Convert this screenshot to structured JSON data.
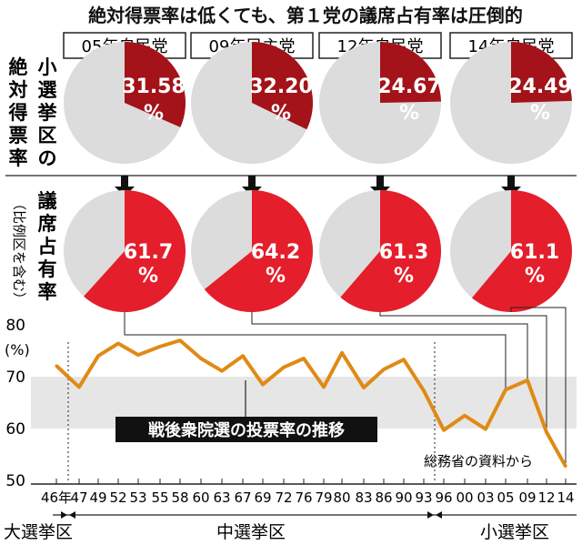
{
  "title": "絶対得票率は低くても、第１党の議席占有率は圧倒的",
  "pie_section": {
    "row1_label": [
      "小",
      "選",
      "挙",
      "区",
      "の",
      "絶",
      "対",
      "得",
      "票",
      "率"
    ],
    "row2_label_main": [
      "議",
      "席",
      "占",
      "有",
      "率"
    ],
    "row2_label_sub": "（比例区を含む）",
    "elections": [
      {
        "label": "05年自民党",
        "absolute_vote_rate": "31.58",
        "seat_share": "61.7"
      },
      {
        "label": "09年民主党",
        "absolute_vote_rate": "32.20",
        "seat_share": "64.2"
      },
      {
        "label": "12年自民党",
        "absolute_vote_rate": "24.67",
        "seat_share": "61.3"
      },
      {
        "label": "14年自民党",
        "absolute_vote_rate": "24.49",
        "seat_share": "61.1"
      }
    ],
    "percent_sign": "%"
  },
  "chart_data": {
    "type": "line",
    "title": "戦後衆院選の投票率の推移",
    "ylabel": "(%)",
    "ylim": [
      50,
      80
    ],
    "yticks": [
      50,
      60,
      70,
      80
    ],
    "band": [
      60,
      70
    ],
    "categories": [
      "46年",
      "47",
      "49",
      "52",
      "53",
      "55",
      "58",
      "60",
      "63",
      "67",
      "69",
      "72",
      "76",
      "79",
      "80",
      "83",
      "86",
      "90",
      "93",
      "96",
      "00",
      "03",
      "05",
      "09",
      "12",
      "14"
    ],
    "series": [
      {
        "name": "投票率",
        "values": [
          72.1,
          68.0,
          74.0,
          76.4,
          74.2,
          75.8,
          77.0,
          73.5,
          71.1,
          74.0,
          68.5,
          71.8,
          73.5,
          68.0,
          74.6,
          67.9,
          71.4,
          73.3,
          67.3,
          59.7,
          62.5,
          59.9,
          67.5,
          69.3,
          59.3,
          52.7
        ]
      }
    ],
    "line_color": "#e08a16",
    "source": "総務省の資料から"
  },
  "eras": [
    {
      "label": "大選挙区"
    },
    {
      "label": "中選挙区"
    },
    {
      "label": "小選挙区"
    }
  ],
  "colors": {
    "dark_red": "#a31319",
    "red": "#e41e2b",
    "pie_gray": "#dcdcdc",
    "band_gray": "#e6e6e6",
    "line_orange": "#e08a16"
  }
}
